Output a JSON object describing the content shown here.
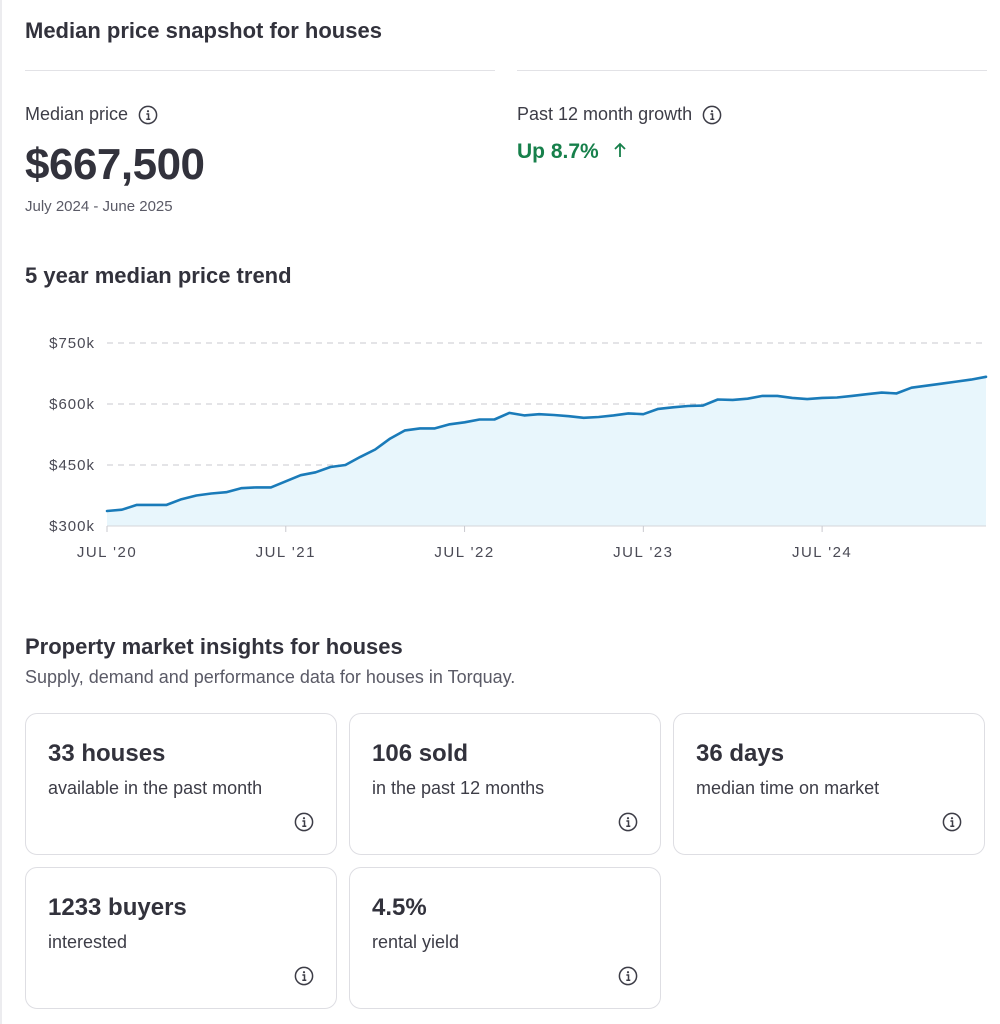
{
  "snapshot": {
    "title": "Median price snapshot for houses",
    "median_label": "Median price",
    "median_value": "$667,500",
    "period": "July 2024 - June 2025",
    "growth_label": "Past 12 month growth",
    "growth_value": "Up 8.7%",
    "growth_icon": "arrow-up-icon"
  },
  "trend": {
    "title": "5 year median price trend"
  },
  "chart_data": {
    "type": "area",
    "title": "",
    "xlabel": "",
    "ylabel": "",
    "x_ticks": [
      "JUL '20",
      "JUL '21",
      "JUL '22",
      "JUL '23",
      "JUL '24"
    ],
    "y_ticks": [
      "$750k",
      "$600k",
      "$450k",
      "$300k"
    ],
    "ylim": [
      300,
      750
    ],
    "y_unit": "thousand AUD",
    "grid": "horizontal dashed",
    "line_color": "#1a7bb9",
    "fill_color": "#e8f6fc",
    "series": [
      {
        "x": [
          "2020-07",
          "2020-08",
          "2020-09",
          "2020-10",
          "2020-11",
          "2020-12",
          "2021-01",
          "2021-02",
          "2021-03",
          "2021-04",
          "2021-05",
          "2021-06",
          "2021-07",
          "2021-08",
          "2021-09",
          "2021-10",
          "2021-11",
          "2021-12",
          "2022-01",
          "2022-02",
          "2022-03",
          "2022-04",
          "2022-05",
          "2022-06",
          "2022-07",
          "2022-08",
          "2022-09",
          "2022-10",
          "2022-11",
          "2022-12",
          "2023-01",
          "2023-02",
          "2023-03",
          "2023-04",
          "2023-05",
          "2023-06",
          "2023-07",
          "2023-08",
          "2023-09",
          "2023-10",
          "2023-11",
          "2023-12",
          "2024-01",
          "2024-02",
          "2024-03",
          "2024-04",
          "2024-05",
          "2024-06",
          "2024-07",
          "2024-08",
          "2024-09",
          "2024-10",
          "2024-11",
          "2024-12",
          "2025-01",
          "2025-02",
          "2025-03",
          "2025-04",
          "2025-05",
          "2025-06"
        ],
        "values": [
          337,
          340,
          352,
          352,
          352,
          366,
          375,
          380,
          383,
          393,
          395,
          395,
          410,
          425,
          432,
          445,
          450,
          470,
          488,
          515,
          535,
          540,
          540,
          550,
          555,
          562,
          562,
          578,
          572,
          575,
          573,
          570,
          566,
          568,
          572,
          577,
          575,
          588,
          592,
          595,
          596,
          611,
          610,
          613,
          620,
          620,
          615,
          612,
          615,
          616,
          620,
          624,
          628,
          626,
          640,
          645,
          650,
          655,
          660,
          667
        ]
      }
    ]
  },
  "insights": {
    "title": "Property market insights for houses",
    "subtitle": "Supply, demand and performance data for houses in Torquay.",
    "cards": [
      {
        "value": "33 houses",
        "label": "available in the past month"
      },
      {
        "value": "106 sold",
        "label": "in the past 12 months"
      },
      {
        "value": "36 days",
        "label": "median time on market"
      },
      {
        "value": "1233 buyers",
        "label": "interested"
      },
      {
        "value": "4.5%",
        "label": "rental yield"
      }
    ],
    "info_icon": "info-icon"
  },
  "colors": {
    "growth": "#17804b",
    "text": "#32323c",
    "line": "#1a7bb9"
  }
}
